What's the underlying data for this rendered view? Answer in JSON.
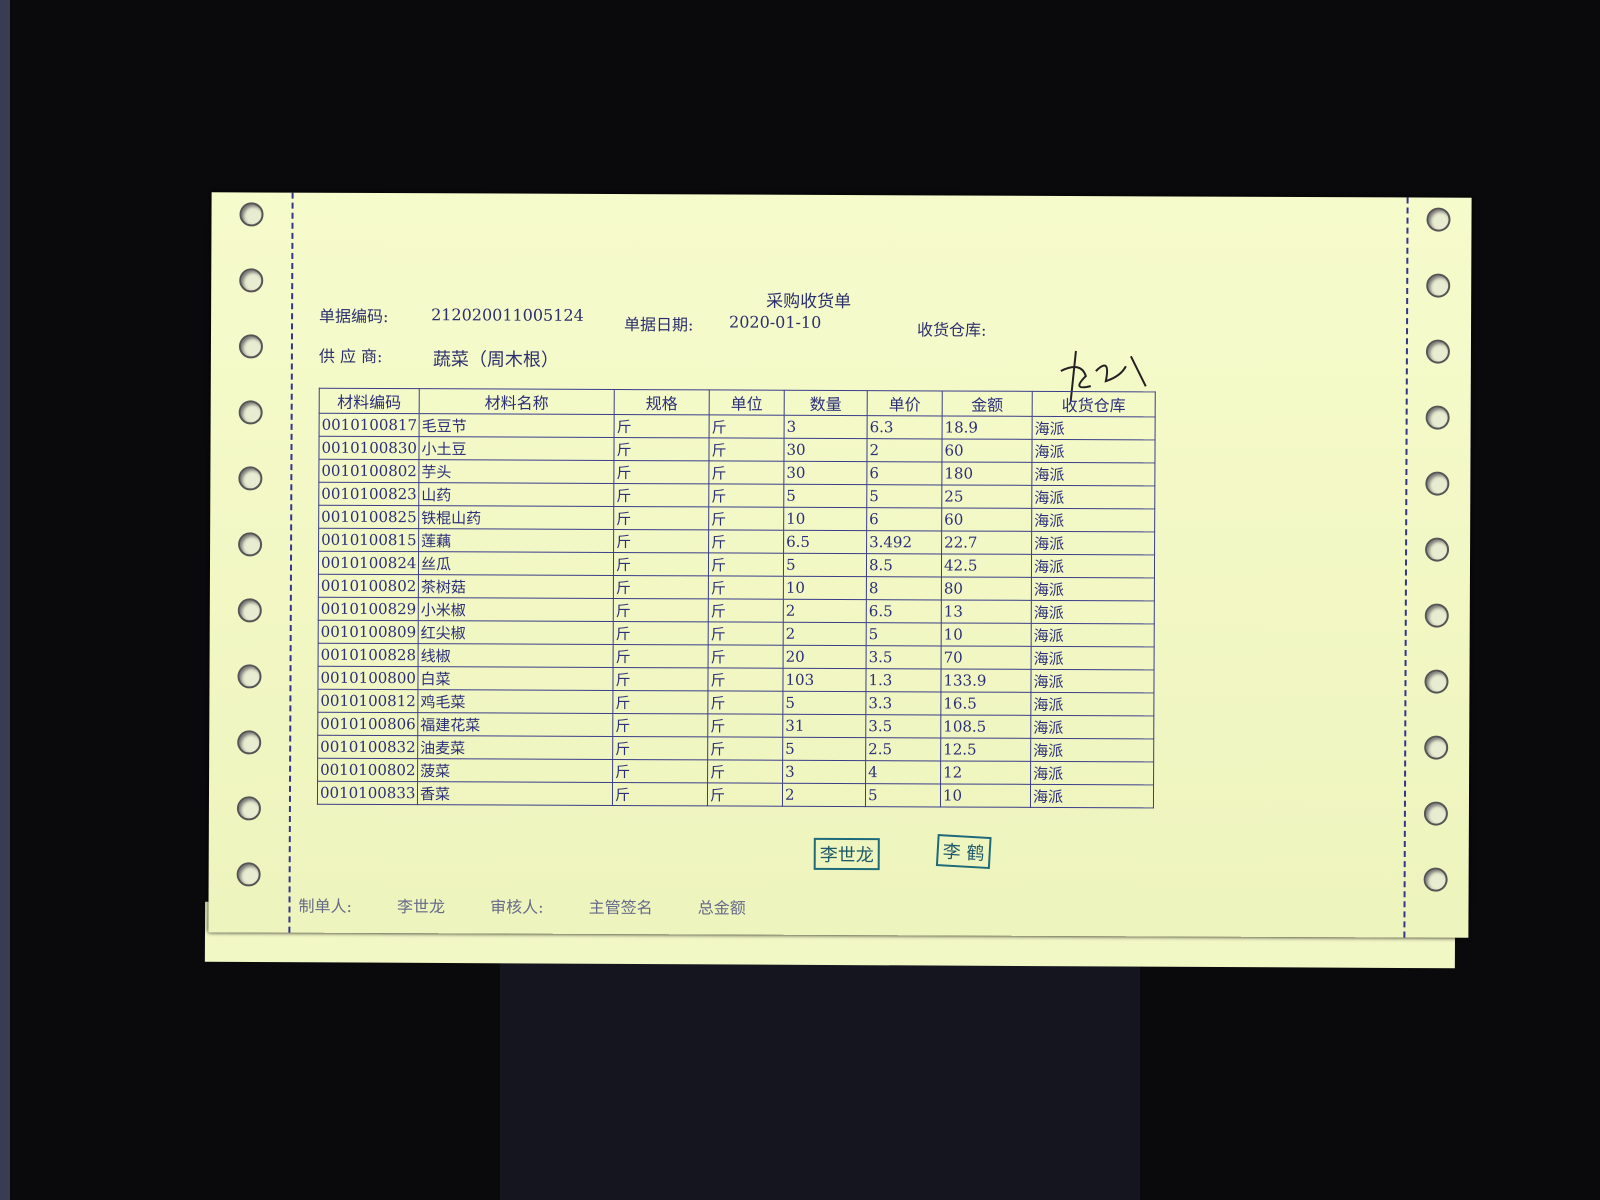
{
  "document": {
    "title": "采购收货单",
    "doc_no_label": "单据编码:",
    "doc_no": "212020011005124",
    "date_label": "单据日期:",
    "date": "2020-01-10",
    "warehouse_label": "收货仓库:",
    "supplier_label": "供 应 商:",
    "supplier": "蔬菜（周木根）"
  },
  "table": {
    "headers": [
      "材料编码",
      "材料名称",
      "规格",
      "单位",
      "数量",
      "单价",
      "金额",
      "收货仓库"
    ],
    "rows": [
      [
        "0010100817",
        "毛豆节",
        "斤",
        "斤",
        "3",
        "6.3",
        "18.9",
        "海派"
      ],
      [
        "0010100830",
        "小土豆",
        "斤",
        "斤",
        "30",
        "2",
        "60",
        "海派"
      ],
      [
        "0010100802",
        "芋头",
        "斤",
        "斤",
        "30",
        "6",
        "180",
        "海派"
      ],
      [
        "0010100823",
        "山药",
        "斤",
        "斤",
        "5",
        "5",
        "25",
        "海派"
      ],
      [
        "0010100825",
        "铁棍山药",
        "斤",
        "斤",
        "10",
        "6",
        "60",
        "海派"
      ],
      [
        "0010100815",
        "莲藕",
        "斤",
        "斤",
        "6.5",
        "3.492",
        "22.7",
        "海派"
      ],
      [
        "0010100824",
        "丝瓜",
        "斤",
        "斤",
        "5",
        "8.5",
        "42.5",
        "海派"
      ],
      [
        "0010100802",
        "茶树菇",
        "斤",
        "斤",
        "10",
        "8",
        "80",
        "海派"
      ],
      [
        "0010100829",
        "小米椒",
        "斤",
        "斤",
        "2",
        "6.5",
        "13",
        "海派"
      ],
      [
        "0010100809",
        "红尖椒",
        "斤",
        "斤",
        "2",
        "5",
        "10",
        "海派"
      ],
      [
        "0010100828",
        "线椒",
        "斤",
        "斤",
        "20",
        "3.5",
        "70",
        "海派"
      ],
      [
        "0010100800",
        "白菜",
        "斤",
        "斤",
        "103",
        "1.3",
        "133.9",
        "海派"
      ],
      [
        "0010100812",
        "鸡毛菜",
        "斤",
        "斤",
        "5",
        "3.3",
        "16.5",
        "海派"
      ],
      [
        "0010100806",
        "福建花菜",
        "斤",
        "斤",
        "31",
        "3.5",
        "108.5",
        "海派"
      ],
      [
        "0010100832",
        "油麦菜",
        "斤",
        "斤",
        "5",
        "2.5",
        "12.5",
        "海派"
      ],
      [
        "0010100802",
        "菠菜",
        "斤",
        "斤",
        "3",
        "4",
        "12",
        "海派"
      ],
      [
        "0010100833",
        "香菜",
        "斤",
        "斤",
        "2",
        "5",
        "10",
        "海派"
      ]
    ]
  },
  "stamps": [
    "李世龙",
    "李 鹤"
  ],
  "footer": {
    "maker_label": "制单人:",
    "maker": "李世龙",
    "reviewer_label": "审核人:",
    "manager_label": "主管签名",
    "total_label": "总金额"
  },
  "colors": {
    "paper": "#f4f9c8",
    "ink": "#2c2f7a",
    "stamp": "#1f6a7a"
  }
}
